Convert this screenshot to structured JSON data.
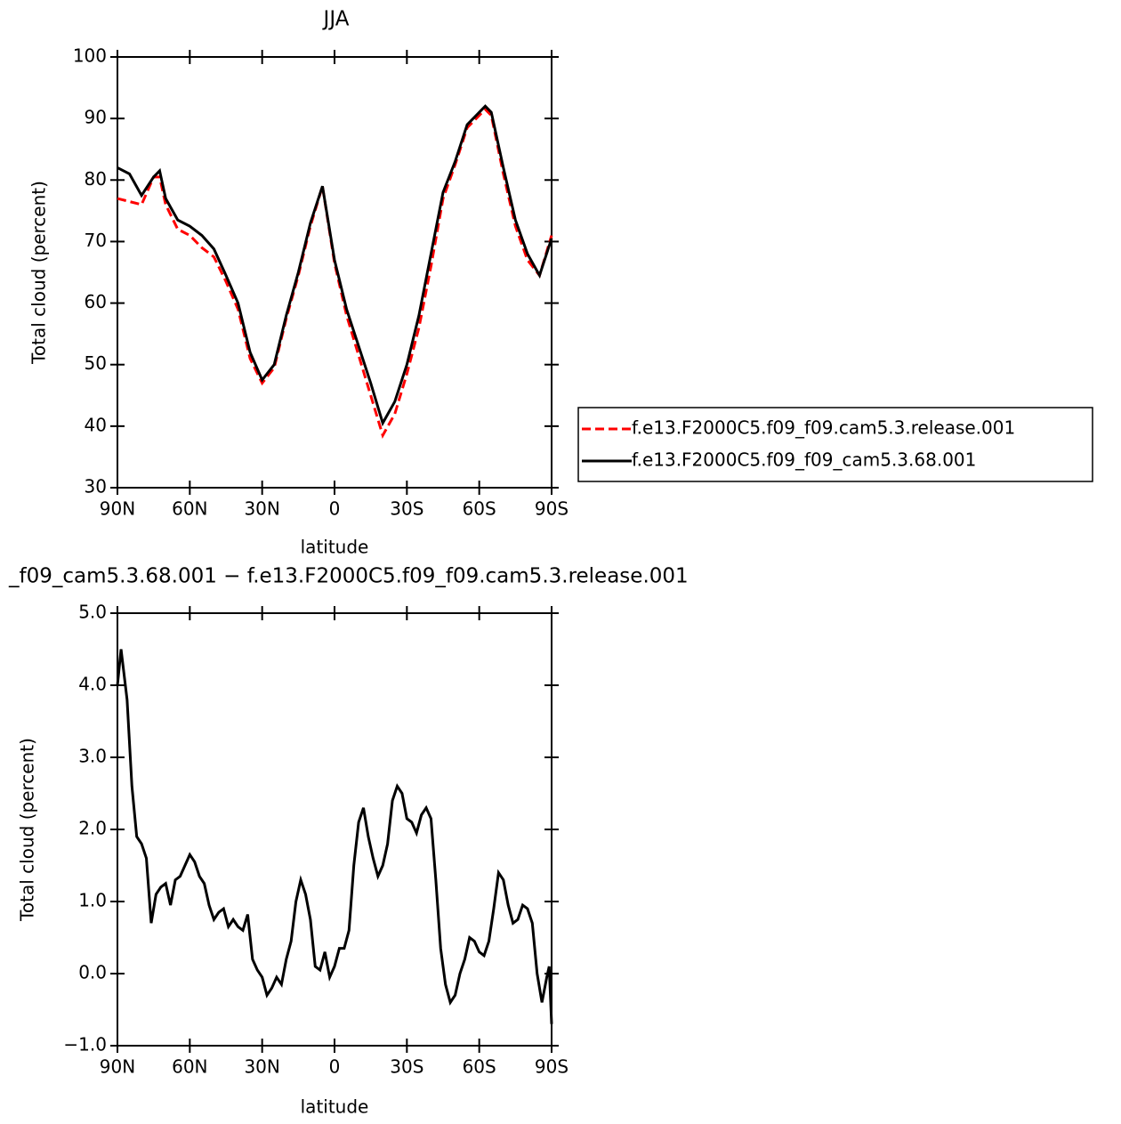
{
  "chart_data": [
    {
      "type": "line",
      "title": "JJA",
      "x_label": "latitude",
      "y_label": "Total cloud (percent)",
      "x": [
        90,
        85,
        80,
        75,
        72.5,
        70,
        65,
        60,
        55,
        50,
        45,
        40,
        35,
        30,
        25,
        20,
        15,
        10,
        5,
        0,
        -5,
        -10,
        -15,
        -20,
        -25,
        -30,
        -35,
        -40,
        -45,
        -50,
        -55,
        -60,
        -62.5,
        -65,
        -70,
        -75,
        -80,
        -85,
        -90
      ],
      "series": [
        {
          "name": "f.e13.F2000C5.f09_f09.cam5.3.release.001",
          "color": "#ff0000",
          "dash": "dashed",
          "values": [
            77,
            76.5,
            76,
            80.5,
            80.5,
            76,
            72,
            71,
            69,
            67.5,
            63.5,
            59,
            51,
            47,
            49.5,
            57.5,
            64.5,
            72.5,
            79,
            66.5,
            58,
            51.5,
            45,
            38.5,
            42,
            48.5,
            56,
            66,
            77,
            82.5,
            88.5,
            90.5,
            91.5,
            90.5,
            81,
            72.5,
            67,
            64.5,
            71
          ]
        },
        {
          "name": "f.e13.F2000C5.f09_f09_cam5.3.68.001",
          "color": "#000000",
          "dash": "solid",
          "values": [
            82,
            81,
            77.5,
            80.5,
            81.5,
            77,
            73.5,
            72.5,
            71,
            68.8,
            64.5,
            60,
            52,
            47.5,
            50,
            58,
            65,
            73,
            79,
            67,
            59,
            53,
            47,
            40.5,
            44,
            50,
            58,
            68,
            78,
            83,
            89,
            91,
            92,
            91,
            82,
            73.5,
            68,
            64.5,
            70.5
          ]
        }
      ],
      "xlim": [
        90,
        -90
      ],
      "xticks": [
        {
          "value": 90,
          "label": "90N"
        },
        {
          "value": 60,
          "label": "60N"
        },
        {
          "value": 30,
          "label": "30N"
        },
        0,
        {
          "value": -30,
          "label": "30S"
        },
        {
          "value": -60,
          "label": "60S"
        },
        {
          "value": -90,
          "label": "90S"
        }
      ],
      "ylim": [
        30,
        100
      ],
      "yticks": [
        30,
        40,
        50,
        60,
        70,
        80,
        90,
        100
      ],
      "legend": "right"
    },
    {
      "type": "line",
      "title": "_f09_cam5.3.68.001 − f.e13.F2000C5.f09_f09.cam5.3.release.001",
      "x_label": "latitude",
      "y_label": "Total cloud (percent)",
      "x": [
        90,
        88.5,
        86,
        84,
        82,
        80,
        78,
        76,
        74,
        72,
        70,
        68,
        66,
        64,
        62,
        60,
        58,
        56,
        54,
        52,
        50,
        48,
        46,
        44,
        42,
        40,
        38,
        36,
        34,
        32,
        30,
        28,
        26,
        24,
        22,
        20,
        18,
        16,
        14,
        12,
        10,
        8,
        6,
        4,
        2,
        0,
        -2,
        -4,
        -6,
        -8,
        -10,
        -12,
        -14,
        -16,
        -18,
        -20,
        -22,
        -24,
        -26,
        -28,
        -30,
        -32,
        -34,
        -36,
        -38,
        -40,
        -42,
        -44,
        -46,
        -48,
        -50,
        -52,
        -54,
        -56,
        -58,
        -60,
        -62,
        -64,
        -66,
        -68,
        -70,
        -72,
        -74,
        -76,
        -78,
        -80,
        -82,
        -84,
        -86,
        -88,
        -89,
        -90
      ],
      "color": "#000000",
      "values": [
        4.0,
        4.5,
        3.8,
        2.6,
        1.9,
        1.8,
        1.6,
        0.7,
        1.1,
        1.2,
        1.25,
        0.95,
        1.3,
        1.35,
        1.5,
        1.65,
        1.55,
        1.35,
        1.25,
        0.95,
        0.75,
        0.85,
        0.9,
        0.65,
        0.75,
        0.65,
        0.6,
        0.82,
        0.2,
        0.05,
        -0.05,
        -0.3,
        -0.2,
        -0.05,
        -0.15,
        0.2,
        0.45,
        1.0,
        1.3,
        1.1,
        0.75,
        0.1,
        0.05,
        0.3,
        -0.05,
        0.1,
        0.35,
        0.35,
        0.6,
        1.5,
        2.1,
        2.3,
        1.9,
        1.6,
        1.35,
        1.5,
        1.8,
        2.4,
        2.6,
        2.5,
        2.15,
        2.1,
        1.95,
        2.2,
        2.3,
        2.15,
        1.3,
        0.35,
        -0.15,
        -0.4,
        -0.3,
        0.0,
        0.2,
        0.5,
        0.45,
        0.3,
        0.25,
        0.45,
        0.9,
        1.4,
        1.3,
        0.95,
        0.7,
        0.75,
        0.95,
        0.9,
        0.7,
        0.0,
        -0.4,
        -0.05,
        0.1,
        -0.7
      ],
      "xlim": [
        90,
        -90
      ],
      "xticks": [
        {
          "value": 90,
          "label": "90N"
        },
        {
          "value": 60,
          "label": "60N"
        },
        {
          "value": 30,
          "label": "30N"
        },
        0,
        {
          "value": -30,
          "label": "30S"
        },
        {
          "value": -60,
          "label": "60S"
        },
        {
          "value": -90,
          "label": "90S"
        }
      ],
      "ylim": [
        -1,
        5
      ],
      "yticks": [
        {
          "value": -1,
          "label": "−1.0"
        },
        {
          "value": 0,
          "label": "0.0"
        },
        {
          "value": 1,
          "label": "1.0"
        },
        {
          "value": 2,
          "label": "2.0"
        },
        {
          "value": 3,
          "label": "3.0"
        },
        {
          "value": 4,
          "label": "4.0"
        },
        {
          "value": 5,
          "label": "5.0"
        }
      ]
    }
  ]
}
